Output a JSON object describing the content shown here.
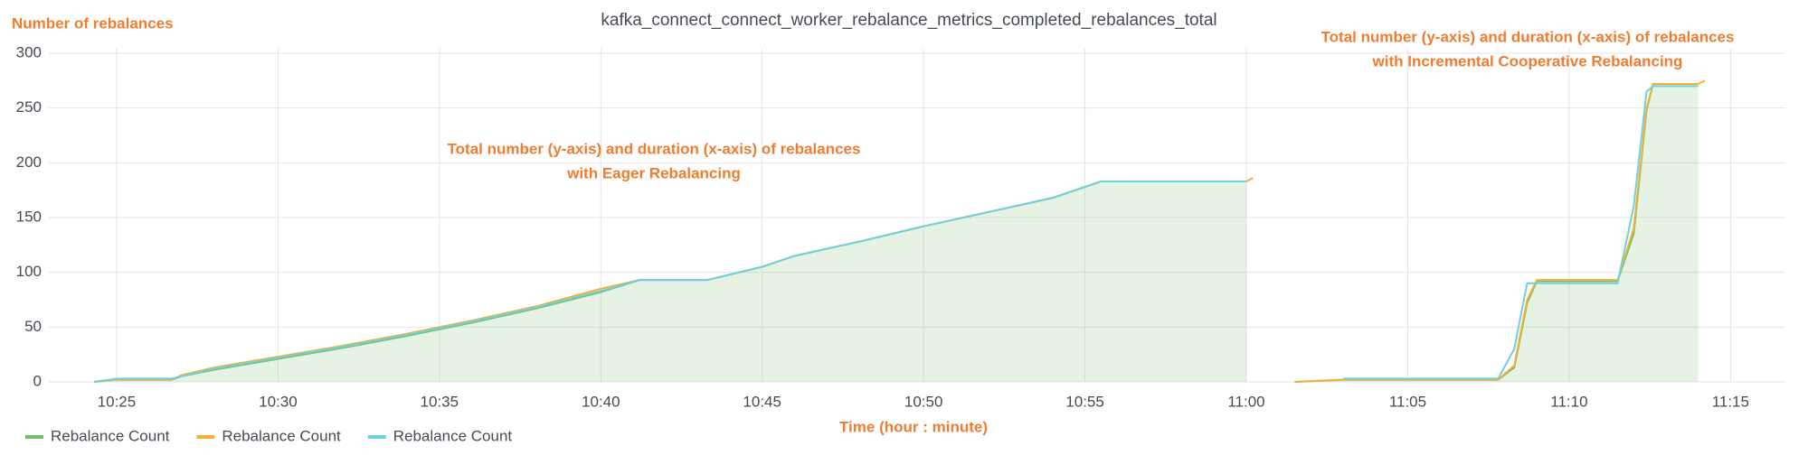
{
  "chart_data": {
    "type": "line",
    "title": "kafka_connect_connect_worker_rebalance_metrics_completed_rebalances_total",
    "y_label": "Number of rebalances",
    "x_label": "Time (hour : minute)",
    "annotations": [
      [
        "Total number (y-axis) and duration (x-axis) of rebalances",
        "with Eager Rebalancing"
      ],
      [
        "Total number (y-axis) and duration (x-axis) of rebalances",
        "with Incremental Cooperative Rebalancing"
      ]
    ],
    "x": [
      24.3,
      25,
      26.7,
      27,
      28,
      30,
      32,
      34,
      36,
      38,
      40,
      41.2,
      43.3,
      44,
      45,
      46,
      48,
      50,
      52,
      54,
      55.5,
      60,
      60.2,
      61,
      61.5,
      63,
      67.8,
      68.3,
      68.7,
      69,
      71.5,
      72,
      72.4,
      72.6,
      74,
      74.2
    ],
    "series": [
      {
        "name": "Rebalance Count",
        "color": "#73bf69",
        "values": [
          0,
          2,
          2,
          5,
          11,
          21,
          31,
          42,
          54,
          67,
          82,
          93,
          93,
          98,
          105,
          115,
          128,
          142,
          155,
          168,
          183,
          183,
          null,
          null,
          0,
          2,
          2,
          13,
          72,
          92,
          92,
          135,
          248,
          272,
          272,
          null
        ]
      },
      {
        "name": "Rebalance Count",
        "color": "#f2b134",
        "values": [
          0,
          2,
          2,
          6,
          13,
          23,
          33,
          44,
          56,
          69,
          85,
          93,
          93,
          98,
          105,
          115,
          128,
          142,
          155,
          168,
          183,
          183,
          186,
          null,
          0,
          2,
          2,
          15,
          75,
          93,
          93,
          140,
          250,
          272,
          272,
          275
        ]
      },
      {
        "name": "Rebalance Count",
        "color": "#6ed0e0",
        "values": [
          0,
          3,
          3,
          5,
          12,
          22,
          32,
          43,
          55,
          68,
          83,
          93,
          93,
          98,
          105,
          115,
          128,
          142,
          155,
          168,
          183,
          183,
          null,
          null,
          null,
          3,
          3,
          30,
          90,
          90,
          90,
          160,
          265,
          270,
          270,
          null
        ]
      }
    ],
    "xlim": [
      22.9,
      76.7
    ],
    "xticks": [
      {
        "value": 25,
        "label": "10:25"
      },
      {
        "value": 30,
        "label": "10:30"
      },
      {
        "value": 35,
        "label": "10:35"
      },
      {
        "value": 40,
        "label": "10:40"
      },
      {
        "value": 45,
        "label": "10:45"
      },
      {
        "value": 50,
        "label": "10:50"
      },
      {
        "value": 55,
        "label": "10:55"
      },
      {
        "value": 60,
        "label": "11:00"
      },
      {
        "value": 65,
        "label": "11:05"
      },
      {
        "value": 70,
        "label": "11:10"
      },
      {
        "value": 75,
        "label": "11:15"
      }
    ],
    "ylim": [
      0,
      300
    ],
    "yticks": [
      0,
      50,
      100,
      150,
      200,
      250,
      300
    ],
    "grid": true
  }
}
